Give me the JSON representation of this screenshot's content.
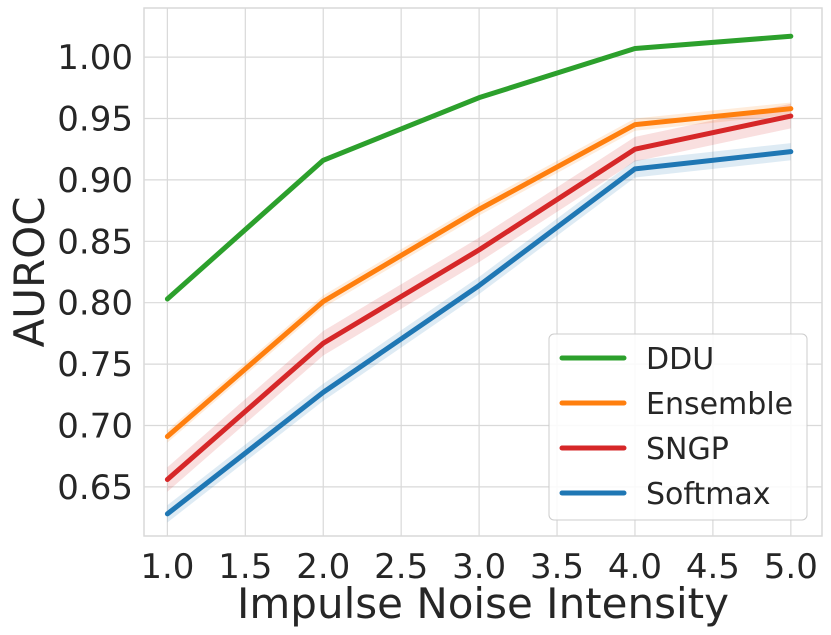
{
  "chart_data": {
    "type": "line",
    "title": "",
    "xlabel": "Impulse Noise Intensity",
    "ylabel": "AUROC",
    "x": [
      1.0,
      2.0,
      3.0,
      4.0,
      5.0
    ],
    "xlim": [
      0.85,
      5.2
    ],
    "ylim": [
      0.61,
      1.04
    ],
    "xticks": [
      1.0,
      1.5,
      2.0,
      2.5,
      3.0,
      3.5,
      4.0,
      4.5,
      5.0
    ],
    "xtick_labels": [
      "1.0",
      "1.5",
      "2.0",
      "2.5",
      "3.0",
      "3.5",
      "4.0",
      "4.5",
      "5.0"
    ],
    "yticks": [
      0.65,
      0.7,
      0.75,
      0.8,
      0.85,
      0.9,
      0.95,
      1.0
    ],
    "ytick_labels": [
      "0.65",
      "0.70",
      "0.75",
      "0.80",
      "0.85",
      "0.90",
      "0.95",
      "1.00"
    ],
    "grid": true,
    "legend_position": "bottom-right",
    "series": [
      {
        "name": "DDU",
        "color": "#2ca02c",
        "values": [
          0.803,
          0.916,
          0.967,
          1.007,
          1.017
        ],
        "band": 0.0
      },
      {
        "name": "Ensemble",
        "color": "#ff7f0e",
        "values": [
          0.691,
          0.801,
          0.876,
          0.945,
          0.958
        ],
        "band": 0.005
      },
      {
        "name": "SNGP",
        "color": "#d62728",
        "values": [
          0.656,
          0.767,
          0.843,
          0.925,
          0.952
        ],
        "band": 0.01
      },
      {
        "name": "Softmax",
        "color": "#1f77b4",
        "values": [
          0.628,
          0.727,
          0.814,
          0.909,
          0.923
        ],
        "band": 0.007
      }
    ]
  }
}
